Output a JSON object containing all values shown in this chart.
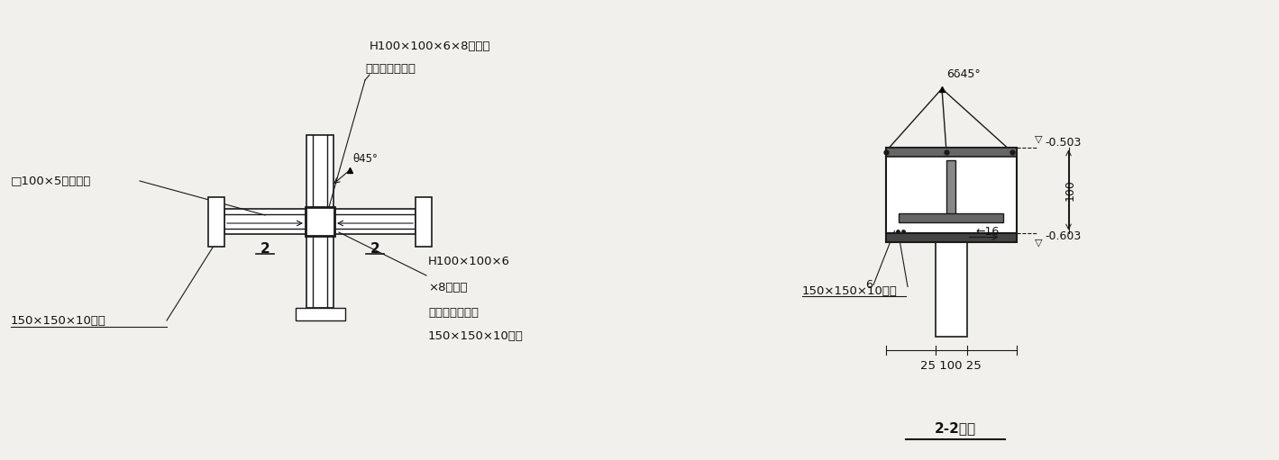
{
  "bg_color": "#f2f0ec",
  "line_color": "#1a1a1a",
  "text_color": "#111111",
  "labels_left": {
    "title_top": "H100×100×6×8型鈢梁",
    "title_top2": "（主受力方向）",
    "angle": "θ45°",
    "col_label": "□100×5矩形鈢柱",
    "beam2": "H100×100×6",
    "beam2b": "×8型鈢梁",
    "beam2c": "（次受力方向）",
    "plate_label": "150×150×10鈢板",
    "plate_label2": "150×150×10鈢板",
    "dim2L": "2",
    "dim2R": "2"
  },
  "labels_right": {
    "angle": "6δ45°",
    "elev1": "-0.503",
    "elev2": "-0.603",
    "dim100": "100",
    "dim16": "←16",
    "dim6": "6",
    "dims_bot": "25 100 25",
    "section_label": "2-2剖面",
    "plate_label": "150×150×10鈢板"
  }
}
